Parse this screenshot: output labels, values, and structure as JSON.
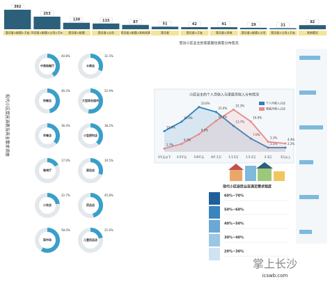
{
  "side_title": "现代小区居民消费及商业需求调查",
  "chart_data": [
    {
      "type": "bar",
      "title": "受访小区业主的家庭居住类型分布情况",
      "categories": [
        "受访者+配偶+子女",
        "受访者+配偶+父母+子女",
        "受访者+配偶",
        "受访者+父母",
        "受访者+配偶+其他亲属",
        "受访者",
        "受访者+子女",
        "受访者+其他",
        "受访者+配偶+父母",
        "受访者+父母+子女",
        "其他情况"
      ],
      "values": [
        392,
        253,
        130,
        115,
        87,
        51,
        42,
        41,
        29,
        21,
        82
      ],
      "color": "#2b5f7a",
      "ylim": [
        0,
        392
      ]
    },
    {
      "type": "line",
      "title": "小区业主的个人月收入与家庭月收入分布情况",
      "categories": [
        "3千元以下",
        "3-5千元",
        "5-8千元",
        "8千-1万",
        "1-1.5万",
        "1.5-2万",
        "2-3万",
        "3万以上"
      ],
      "ylim": [
        0,
        25
      ],
      "series": [
        {
          "name": "个人月收入占比",
          "color": "#2f7fb8",
          "values": [
            10.9,
            15.9,
            23.6,
            21.0,
            13.7,
            7.0,
            2.2,
            2.2
          ],
          "value_labels": [
            "10.9%",
            "15.9%",
            "23.6%",
            "21.0%",
            "13.7%",
            "7.0%",
            "2.2%",
            "2.2%"
          ]
        },
        {
          "name": "家庭月收入占比",
          "color": "#e88a8a",
          "values": [
            1.7,
            4.2,
            9.3,
            16.4,
            22.3,
            16.0,
            5.3,
            4.4
          ],
          "value_labels": [
            "1.7%",
            "4.2%",
            "9.3%",
            "16.4%",
            "22.3%",
            "16.0%",
            "5.3%",
            "4.4%"
          ]
        }
      ]
    },
    {
      "type": "donut",
      "categories": [
        "中高档餐厅",
        "水果店",
        "快餐店",
        "大型综合超市",
        "早餐店",
        "小型便利店",
        "咖啡厅",
        "面包店",
        "小吃店",
        "药品店",
        "菜市场",
        "儿童用品店"
      ],
      "values": [
        40.8,
        31.5,
        46.2,
        52.9,
        36.4,
        38.2,
        17.0,
        30.5,
        22.7,
        45.8,
        58.4,
        21.6
      ],
      "value_labels": [
        "40.8%",
        "31.5%",
        "46.2%",
        "52.9%",
        "36.4%",
        "38.2%",
        "17.0%",
        "30.5%",
        "22.7%",
        "45.8%",
        "58.4%",
        "21.6%"
      ],
      "color": "#3a9fc8"
    }
  ],
  "satisfaction": {
    "title": "现代小区居民业态满足需求程度",
    "levels": [
      "60%~70%",
      "50%~60%",
      "40%~50%",
      "30%~40%",
      "20%~30%"
    ],
    "colors": [
      "#1f5f9a",
      "#3a84c0",
      "#6aa8d6",
      "#9cc6e6",
      "#cfe3f3"
    ]
  },
  "footer": {
    "brand": "掌上长沙",
    "site": "icswb.com"
  }
}
